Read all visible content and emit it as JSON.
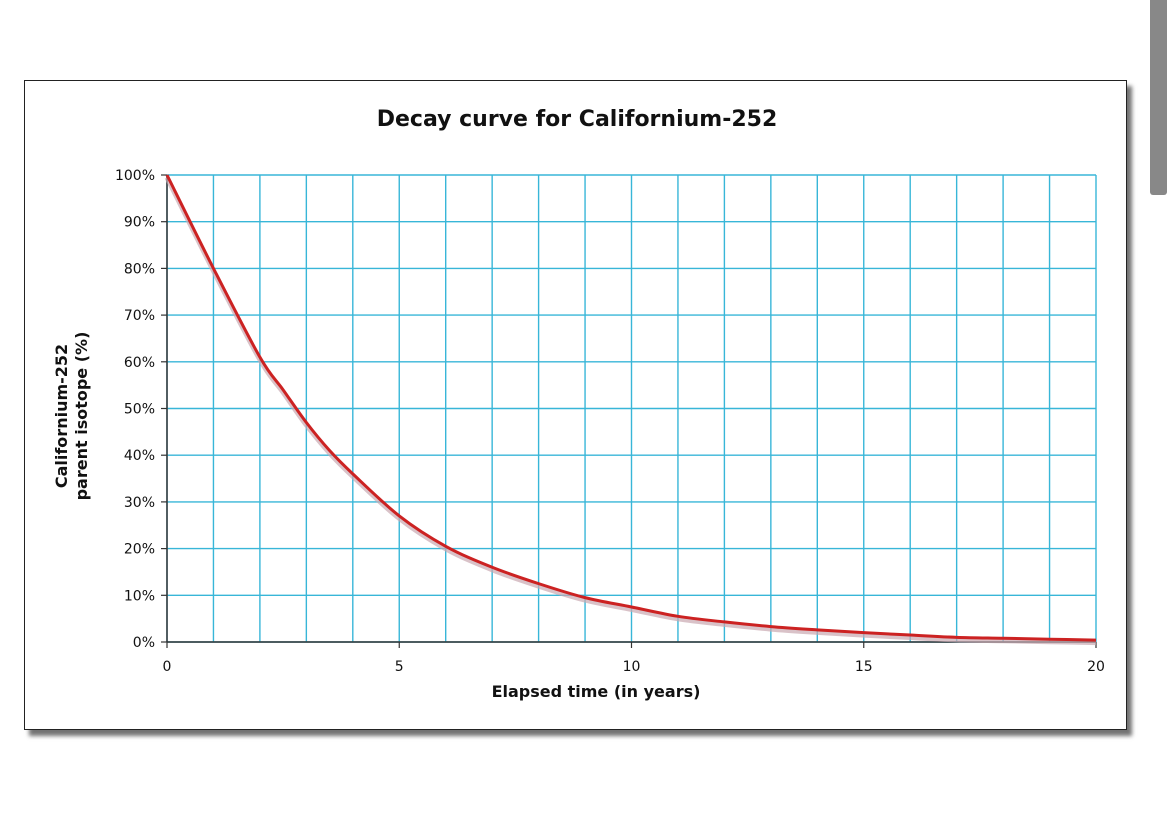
{
  "chart_data": {
    "type": "line",
    "title": "Decay curve for Californium-252",
    "xlabel": "Elapsed time (in years)",
    "ylabel_lines": [
      "Californium-252",
      "parent isotope (%)"
    ],
    "xlim": [
      0,
      20
    ],
    "ylim": [
      0,
      100
    ],
    "grid": true,
    "x_grid_step": 1,
    "y_grid_step": 10,
    "x_ticks": [
      {
        "value": 0,
        "label": "0"
      },
      {
        "value": 5,
        "label": "5"
      },
      {
        "value": 10,
        "label": "10"
      },
      {
        "value": 15,
        "label": "15"
      },
      {
        "value": 20,
        "label": "20"
      }
    ],
    "y_ticks": [
      {
        "value": 0,
        "label": "0%"
      },
      {
        "value": 10,
        "label": "10%"
      },
      {
        "value": 20,
        "label": "20%"
      },
      {
        "value": 30,
        "label": "30%"
      },
      {
        "value": 40,
        "label": "40%"
      },
      {
        "value": 50,
        "label": "50%"
      },
      {
        "value": 60,
        "label": "60%"
      },
      {
        "value": 70,
        "label": "70%"
      },
      {
        "value": 80,
        "label": "80%"
      },
      {
        "value": 90,
        "label": "90%"
      },
      {
        "value": 100,
        "label": "100%"
      }
    ],
    "series": [
      {
        "name": "Californium-252",
        "color": "#cc2222",
        "x": [
          0,
          1,
          2,
          2.5,
          3,
          3.5,
          4,
          5,
          6,
          7,
          8,
          9,
          10,
          11,
          12,
          13,
          14,
          15,
          16,
          17,
          18,
          19,
          20
        ],
        "y": [
          100,
          80,
          61,
          54,
          47,
          41,
          36,
          27,
          20.5,
          16,
          12.5,
          9.5,
          7.5,
          5.5,
          4.3,
          3.3,
          2.6,
          2.0,
          1.5,
          1.0,
          0.8,
          0.6,
          0.4
        ]
      }
    ],
    "colors": {
      "grid": "#38b6d8",
      "axis": "#333333",
      "shadow": "#c9a8b0"
    }
  }
}
